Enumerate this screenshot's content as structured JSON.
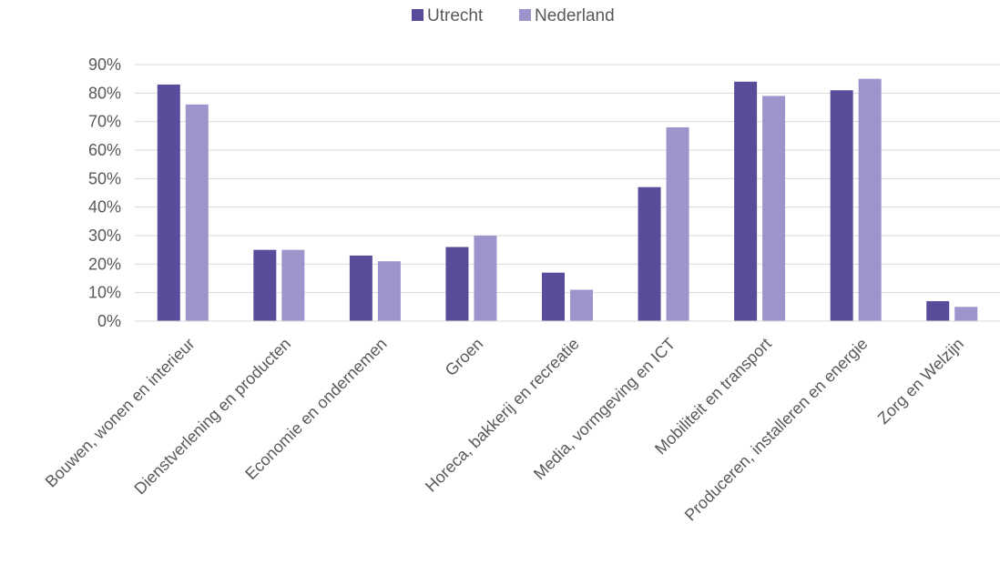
{
  "chart_data": {
    "type": "bar",
    "title": "",
    "xlabel": "",
    "ylabel": "",
    "ylim": [
      0,
      90
    ],
    "y_tick_format": "percent",
    "yticks": [
      0,
      10,
      20,
      30,
      40,
      50,
      60,
      70,
      80,
      90
    ],
    "ytick_labels": [
      "0%",
      "10%",
      "20%",
      "30%",
      "40%",
      "50%",
      "60%",
      "70%",
      "80%",
      "90%"
    ],
    "grid": true,
    "legend_position": "top",
    "categories": [
      "Bouwen, wonen en interieur",
      "Dienstverlening en producten",
      "Economie en ondernemen",
      "Groen",
      "Horeca, bakkerij en recreatie",
      "Media, vormgeving en ICT",
      "Mobiliteit en transport",
      "Produceren, installeren en energie",
      "Zorg en Welzijn"
    ],
    "series": [
      {
        "name": "Utrecht",
        "color": "#5b4c9b",
        "values": [
          83,
          25,
          23,
          26,
          17,
          47,
          84,
          81,
          7
        ]
      },
      {
        "name": "Nederland",
        "color": "#9e94cc",
        "values": [
          76,
          25,
          21,
          30,
          11,
          68,
          79,
          85,
          5
        ]
      }
    ]
  }
}
